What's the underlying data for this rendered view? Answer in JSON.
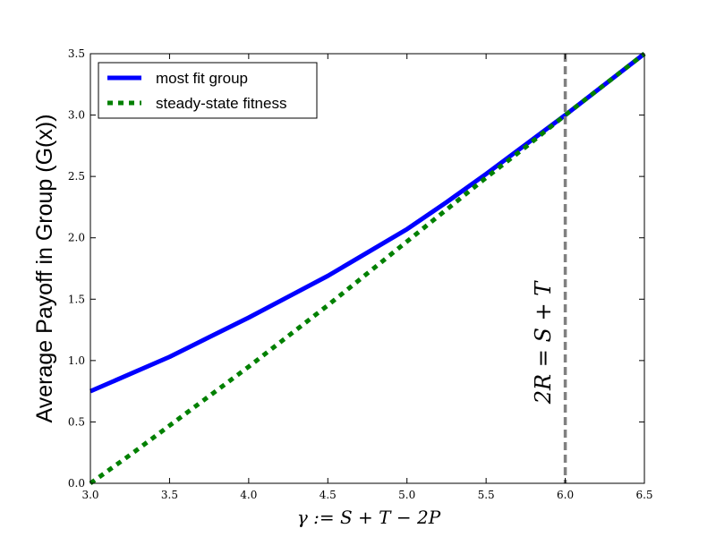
{
  "chart_data": {
    "type": "line",
    "title": "",
    "xlabel": "γ := S + T − 2P",
    "ylabel": "Average Payoff in Group (G(x))",
    "xlim": [
      3.0,
      6.5
    ],
    "ylim": [
      0.0,
      3.5
    ],
    "x_ticks": [
      "3.0",
      "3.5",
      "4.0",
      "4.5",
      "5.0",
      "5.5",
      "6.0",
      "6.5"
    ],
    "y_ticks": [
      "0.0",
      "0.5",
      "1.0",
      "1.5",
      "2.0",
      "2.5",
      "3.0",
      "3.5"
    ],
    "grid": false,
    "legend_position": "top-left",
    "series": [
      {
        "name": "most fit group",
        "color": "#0000ff",
        "style": "solid",
        "x": [
          3.0,
          3.25,
          3.5,
          3.75,
          4.0,
          4.25,
          4.5,
          4.75,
          5.0,
          5.25,
          5.5,
          5.75,
          6.0,
          6.25,
          6.5
        ],
        "y": [
          0.75,
          0.89,
          1.03,
          1.19,
          1.35,
          1.52,
          1.69,
          1.88,
          2.07,
          2.29,
          2.52,
          2.76,
          3.0,
          3.25,
          3.5
        ]
      },
      {
        "name": "steady-state fitness",
        "color": "#008000",
        "style": "dashed",
        "x": [
          3.0,
          3.25,
          3.5,
          3.75,
          4.0,
          4.25,
          4.5,
          4.75,
          5.0,
          5.25,
          5.5,
          5.75,
          6.0,
          6.25,
          6.5
        ],
        "y": [
          0.0,
          0.23,
          0.47,
          0.71,
          0.95,
          1.2,
          1.45,
          1.71,
          1.97,
          2.23,
          2.49,
          2.74,
          3.0,
          3.25,
          3.5
        ]
      }
    ],
    "annotations": [
      {
        "type": "vline",
        "x": 6.0,
        "color": "#808080",
        "style": "dashed",
        "label": "2R = S + T"
      }
    ]
  }
}
